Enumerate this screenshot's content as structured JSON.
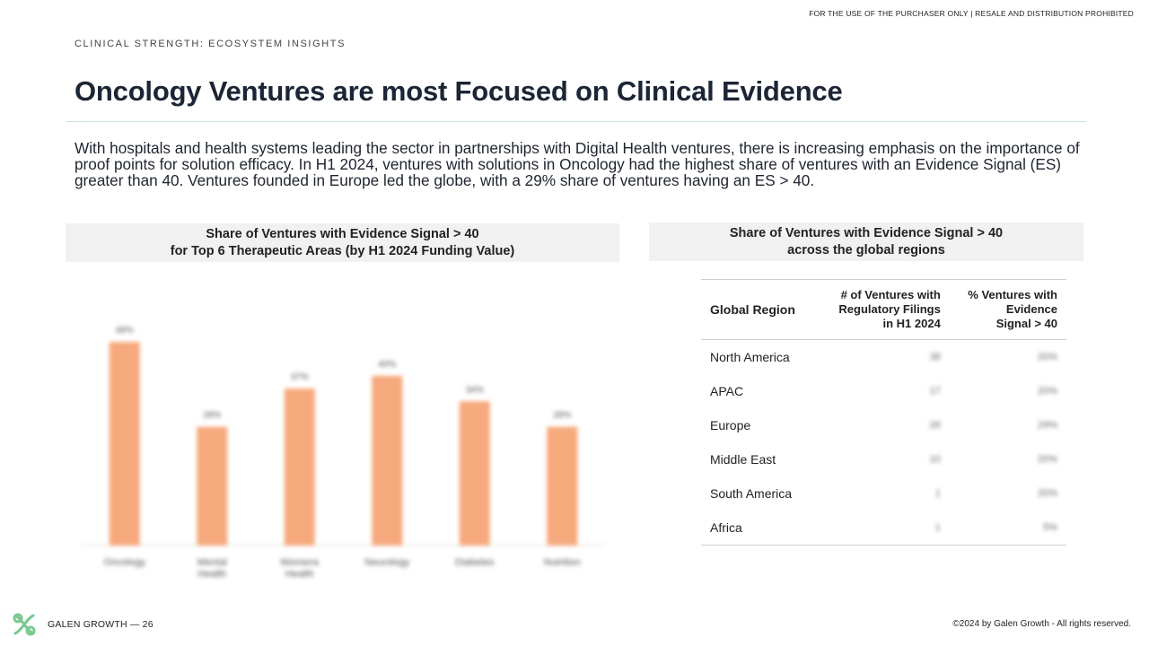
{
  "header": {
    "notice": "FOR THE USE OF THE PURCHASER ONLY | RESALE AND DISTRIBUTION PROHIBITED",
    "eyebrow": "CLINICAL STRENGTH: ECOSYSTEM INSIGHTS",
    "title": "Oncology Ventures are most Focused on Clinical Evidence"
  },
  "intro": "With hospitals and health systems leading the sector in partnerships with Digital Health ventures, there is increasing emphasis on the importance of proof points for solution efficacy. In H1 2024, ventures with solutions in Oncology had the highest share of ventures with an Evidence Signal (ES) greater than 40. Ventures founded in Europe led the globe, with a 29% share of ventures having an ES > 40.",
  "left_panel": {
    "title_line1": "Share of Ventures with Evidence Signal > 40",
    "title_line2": "for Top 6 Therapeutic Areas (by H1 2024 Funding Value)"
  },
  "right_panel": {
    "title_line1": "Share of Ventures with Evidence Signal > 40",
    "title_line2": "across the global regions",
    "table": {
      "headers": {
        "region": "Global Region",
        "count": [
          "# of Ventures with",
          "Regulatory Filings",
          "in H1 2024"
        ],
        "pct": [
          "% Ventures with",
          "Evidence",
          "Signal > 40"
        ]
      },
      "rows": [
        {
          "region": "North America",
          "count": "38",
          "pct": "20%"
        },
        {
          "region": "APAC",
          "count": "17",
          "pct": "20%"
        },
        {
          "region": "Europe",
          "count": "26",
          "pct": "29%"
        },
        {
          "region": "Middle East",
          "count": "10",
          "pct": "20%"
        },
        {
          "region": "South America",
          "count": "1",
          "pct": "20%"
        },
        {
          "region": "Africa",
          "count": "1",
          "pct": "5%"
        }
      ]
    }
  },
  "chart_data": {
    "type": "bar",
    "categories": [
      "Oncology",
      "Mental Health",
      "Womens Health",
      "Neurology",
      "Diabetes",
      "Nutrition"
    ],
    "values": [
      48,
      28,
      37,
      40,
      34,
      28
    ],
    "data_labels": [
      "48%",
      "28%",
      "37%",
      "40%",
      "34%",
      "28%"
    ],
    "ylim": [
      0,
      55
    ],
    "bar_color": "#f6a97c",
    "grid": false,
    "legend": "none"
  },
  "footer": {
    "brand": "GALEN GROWTH  —  26",
    "copyright": "©2024 by Galen Growth  - All rights reserved."
  },
  "colors": {
    "title": "#1c2536",
    "panel_bg": "#f1f1f1",
    "rule": "#cfe3df",
    "logo": "#7ac88f"
  }
}
